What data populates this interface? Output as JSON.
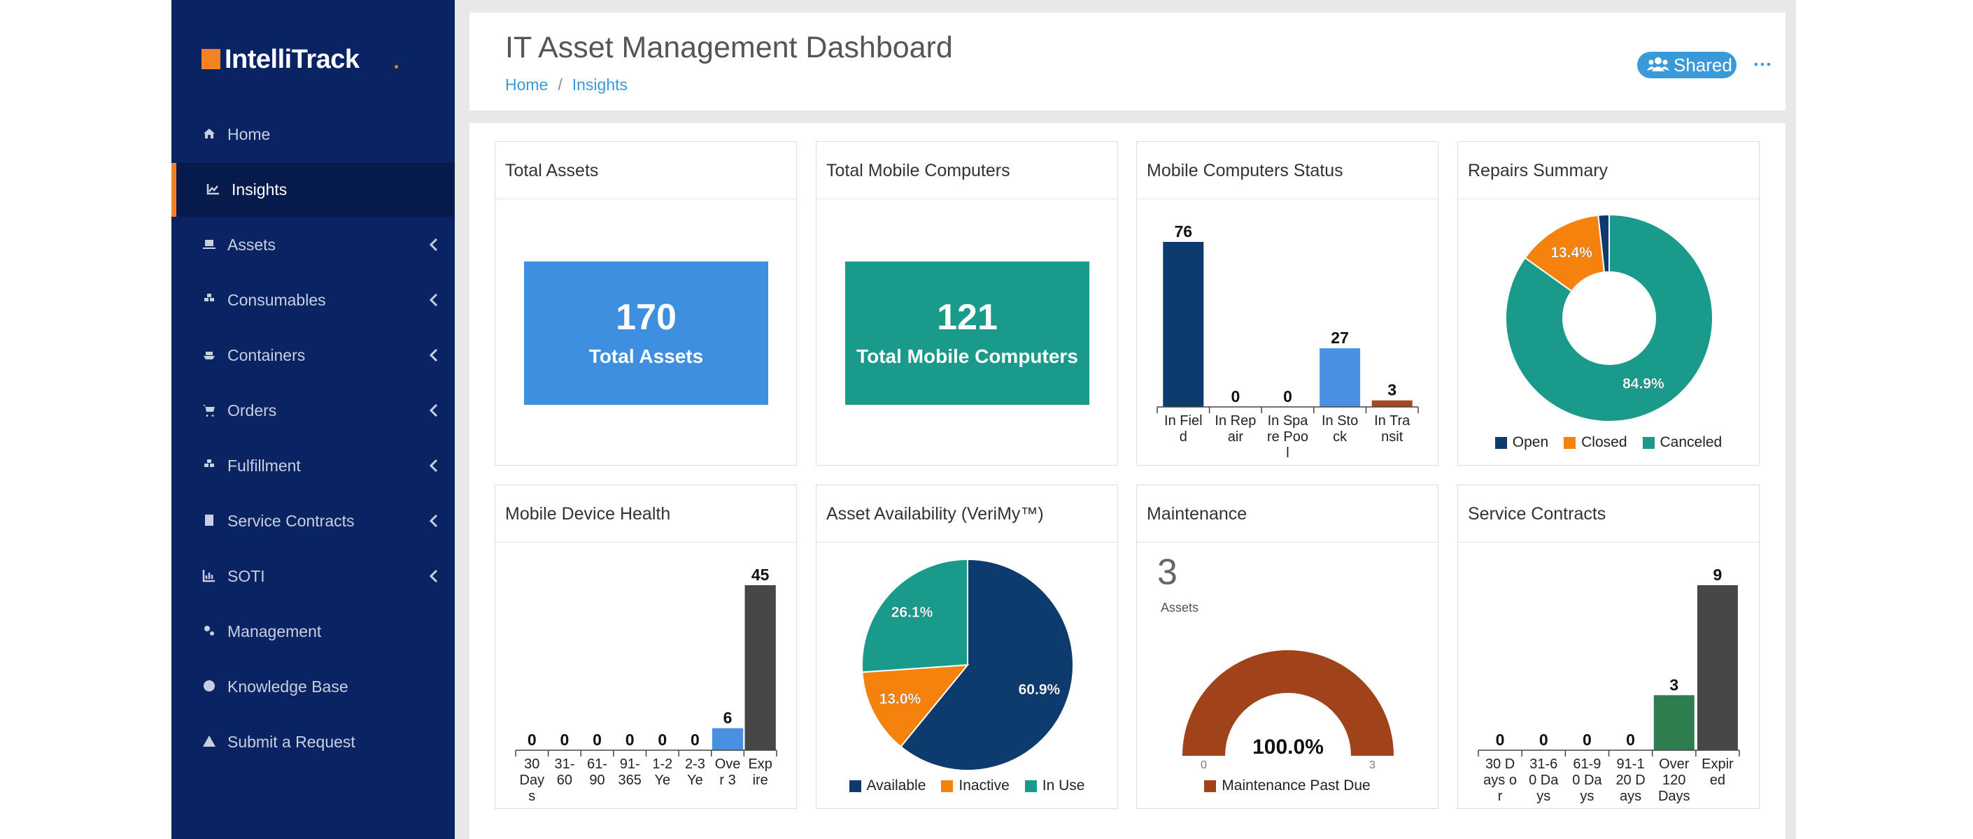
{
  "brand": {
    "name": "IntelliTrack"
  },
  "nav": [
    {
      "label": "Home"
    },
    {
      "label": "Insights",
      "active": true
    },
    {
      "label": "Assets",
      "submenu": true
    },
    {
      "label": "Consumables",
      "submenu": true
    },
    {
      "label": "Containers",
      "submenu": true
    },
    {
      "label": "Orders",
      "submenu": true
    },
    {
      "label": "Fulfillment",
      "submenu": true
    },
    {
      "label": "Service Contracts",
      "submenu": true
    },
    {
      "label": "SOTI",
      "submenu": true
    },
    {
      "label": "Management"
    },
    {
      "label": "Knowledge Base"
    },
    {
      "label": "Submit a Request"
    }
  ],
  "header": {
    "title": "IT Asset Management Dashboard",
    "breadcrumb": [
      "Home",
      "Insights"
    ],
    "separator": "/",
    "shared": "Shared"
  },
  "kpis": [
    {
      "title": "Total Assets",
      "value": 170,
      "label": "Total Assets",
      "color": "#3f8fe0"
    },
    {
      "title": "Total Mobile Computers",
      "value": 121,
      "label": "Total Mobile Computers",
      "color": "#1a9a8a"
    }
  ],
  "chart_data": [
    {
      "type": "bar",
      "title": "Mobile Computers Status",
      "categories": [
        "In Field",
        "In Repair",
        "In Spare Pool",
        "In Stock",
        "In Transit"
      ],
      "values": [
        76,
        0,
        0,
        27,
        3
      ],
      "colors": [
        "#0d3b6e",
        "#0d3b6e",
        "#0d3b6e",
        "#4a90e2",
        "#a8481f"
      ],
      "ylim": [
        0,
        76
      ]
    },
    {
      "type": "donut",
      "title": "Repairs Summary",
      "categories": [
        "Open",
        "Closed",
        "Canceled"
      ],
      "values": [
        1.7,
        13.4,
        84.9
      ],
      "value_labels": [
        null,
        "13.4%",
        "84.9%"
      ],
      "colors": [
        "#0d3b6e",
        "#f5820d",
        "#1a9a8a"
      ]
    },
    {
      "type": "bar",
      "title": "Mobile Device Health",
      "categories": [
        "30 Days",
        "31-60",
        "61-90",
        "91-365",
        "1-2 Ye",
        "2-3 Ye",
        "Over 3",
        "Expire"
      ],
      "values": [
        0,
        0,
        0,
        0,
        0,
        0,
        6,
        45
      ],
      "colors": [
        "#4a90e2",
        "#4a90e2",
        "#4a90e2",
        "#4a90e2",
        "#4a90e2",
        "#4a90e2",
        "#4a90e2",
        "#474747"
      ],
      "ylim": [
        0,
        45
      ]
    },
    {
      "type": "pie",
      "title": "Asset Availability (VeriMy™)",
      "categories": [
        "Available",
        "Inactive",
        "In Use"
      ],
      "values": [
        60.9,
        13.0,
        26.1
      ],
      "value_labels": [
        "60.9%",
        "13.0%",
        "26.1%"
      ],
      "colors": [
        "#0d3b6e",
        "#f5820d",
        "#1a9a8a"
      ]
    },
    {
      "type": "gauge",
      "title": "Maintenance",
      "categories": [
        "Maintenance Past Due"
      ],
      "values": [
        3
      ],
      "unit": "Assets",
      "percent": 100,
      "percent_label": "100.0%",
      "color": "#a0421a",
      "ylim": [
        0,
        3
      ],
      "yticks": [
        0,
        3
      ]
    },
    {
      "type": "bar",
      "title": "Service Contracts",
      "categories": [
        "30 Days or",
        "31-60 Days",
        "61-90 Days",
        "91-120 Days",
        "Over 120 Days",
        "Expired"
      ],
      "values": [
        0,
        0,
        0,
        0,
        3,
        9
      ],
      "colors": [
        "#2e7d4f",
        "#2e7d4f",
        "#2e7d4f",
        "#2e7d4f",
        "#2e7d4f",
        "#474747"
      ],
      "ylim": [
        0,
        9
      ]
    }
  ]
}
